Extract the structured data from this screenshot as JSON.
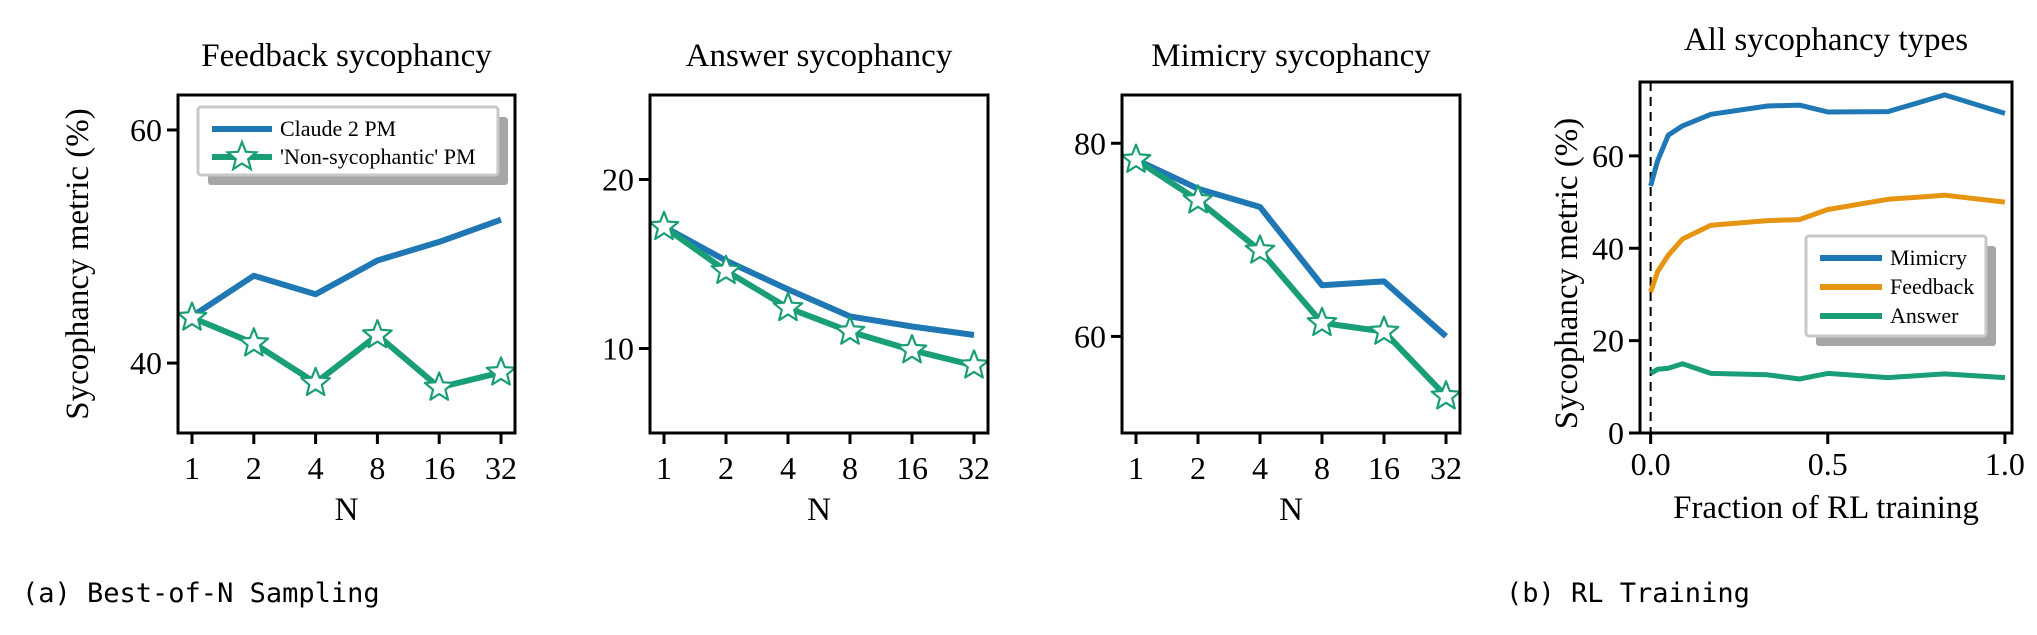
{
  "captions": {
    "left": "(a) Best-of-N Sampling",
    "right": "(b) RL Training"
  },
  "colors": {
    "blue": "#1f77b4",
    "green": "#1a9e77",
    "orange": "#e69512"
  },
  "chart_data": [
    {
      "type": "line",
      "title": "Feedback sycophancy",
      "xlabel": "N",
      "ylabel": "Sycophancy metric (%)",
      "x_scale": "log2",
      "categories": [
        "1",
        "2",
        "4",
        "8",
        "16",
        "32"
      ],
      "x": [
        1,
        2,
        4,
        8,
        16,
        32
      ],
      "ylim": [
        34,
        63
      ],
      "yticks": [
        40,
        60
      ],
      "legend": "top-left",
      "series": [
        {
          "name": "Claude 2 PM",
          "color": "#1f77b4",
          "marker": "none",
          "values": [
            44.0,
            47.5,
            45.9,
            48.8,
            50.4,
            52.3
          ]
        },
        {
          "name": "'Non-sycophantic' PM",
          "color": "#1a9e77",
          "marker": "star",
          "values": [
            43.9,
            41.7,
            38.3,
            42.4,
            37.9,
            39.2
          ]
        }
      ]
    },
    {
      "type": "line",
      "title": "Answer sycophancy",
      "xlabel": "N",
      "ylabel": "",
      "x_scale": "log2",
      "categories": [
        "1",
        "2",
        "4",
        "8",
        "16",
        "32"
      ],
      "x": [
        1,
        2,
        4,
        8,
        16,
        32
      ],
      "ylim": [
        5,
        25
      ],
      "yticks": [
        10,
        20
      ],
      "series": [
        {
          "name": "Claude 2 PM",
          "color": "#1f77b4",
          "marker": "none",
          "values": [
            17.2,
            15.2,
            13.5,
            11.9,
            11.3,
            10.8
          ]
        },
        {
          "name": "'Non-sycophantic' PM",
          "color": "#1a9e77",
          "marker": "star",
          "values": [
            17.2,
            14.6,
            12.4,
            11.0,
            9.9,
            9.0
          ]
        }
      ]
    },
    {
      "type": "line",
      "title": "Mimicry sycophancy",
      "xlabel": "N",
      "ylabel": "",
      "x_scale": "log2",
      "categories": [
        "1",
        "2",
        "4",
        "8",
        "16",
        "32"
      ],
      "x": [
        1,
        2,
        4,
        8,
        16,
        32
      ],
      "ylim": [
        50,
        85
      ],
      "yticks": [
        60,
        80
      ],
      "series": [
        {
          "name": "Claude 2 PM",
          "color": "#1f77b4",
          "marker": "none",
          "values": [
            78.3,
            75.3,
            73.4,
            65.3,
            65.7,
            60.0
          ]
        },
        {
          "name": "'Non-sycophantic' PM",
          "color": "#1a9e77",
          "marker": "star",
          "values": [
            78.3,
            74.1,
            68.9,
            61.4,
            60.5,
            53.8
          ]
        }
      ]
    },
    {
      "type": "line",
      "title": "All sycophancy types",
      "xlabel": "Fraction of RL training",
      "ylabel": "Sycophancy metric (%)",
      "xlim": [
        -0.03,
        1.02
      ],
      "xticks": [
        0.0,
        0.5,
        1.0
      ],
      "xtick_labels": [
        "0.0",
        "0.5",
        "1.0"
      ],
      "ylim": [
        0,
        76
      ],
      "yticks": [
        0,
        20,
        40,
        60
      ],
      "vline_x": 0.0,
      "legend": "center-right",
      "x": [
        0.0,
        0.02,
        0.05,
        0.09,
        0.17,
        0.33,
        0.42,
        0.5,
        0.67,
        0.83,
        1.0
      ],
      "series": [
        {
          "name": "Mimicry",
          "color": "#1f77b4",
          "values": [
            53.5,
            59.0,
            64.5,
            66.5,
            69.0,
            70.8,
            71.0,
            69.5,
            69.6,
            73.2,
            69.2
          ]
        },
        {
          "name": "Feedback",
          "color": "#e69512",
          "values": [
            30.5,
            35.0,
            38.5,
            42.0,
            45.0,
            46.0,
            46.2,
            48.4,
            50.6,
            51.5,
            50.0
          ]
        },
        {
          "name": "Answer",
          "color": "#1a9e77",
          "values": [
            12.9,
            13.8,
            14.0,
            15.0,
            12.9,
            12.6,
            11.7,
            12.9,
            12.0,
            12.8,
            12.0
          ]
        }
      ]
    }
  ]
}
